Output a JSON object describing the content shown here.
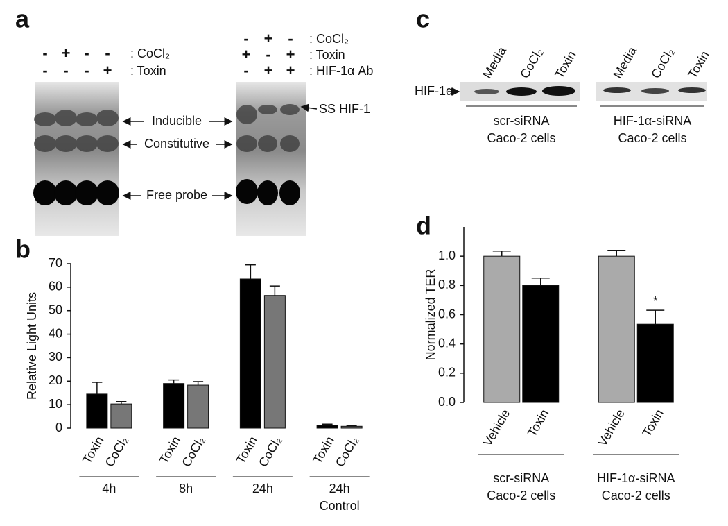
{
  "panel_a": {
    "letter": "a",
    "left_rows": [
      {
        "signs": [
          "-",
          "+",
          "-",
          "-"
        ],
        "label": ": CoCl₂"
      },
      {
        "signs": [
          "-",
          "-",
          "-",
          "+"
        ],
        "label": ": Toxin"
      }
    ],
    "right_rows": [
      {
        "signs": [
          "-",
          "+",
          "-"
        ],
        "label": ": CoCl₂"
      },
      {
        "signs": [
          "+",
          "-",
          "+"
        ],
        "label": ": Toxin"
      },
      {
        "signs": [
          "-",
          "+",
          "+"
        ],
        "label": ": HIF-1α Ab"
      }
    ],
    "bands": [
      "Inducible",
      "Constitutive",
      "Free probe"
    ],
    "right_band": "SS HIF-1"
  },
  "panel_c": {
    "letter": "c",
    "protein": "HIF-1α",
    "blots": [
      {
        "lanes": [
          "Media",
          "CoCl₂",
          "Toxin"
        ],
        "group": [
          "scr-siRNA",
          "Caco-2 cells"
        ]
      },
      {
        "lanes": [
          "Media",
          "CoCl₂",
          "Toxin"
        ],
        "group": [
          "HIF-1α-siRNA",
          "Caco-2 cells"
        ]
      }
    ]
  },
  "chart_data": [
    {
      "type": "bar",
      "panel_label": "b",
      "y_label": "Relative Light Units",
      "categories": [
        "4h",
        "8h",
        "24h",
        "24h\nControl"
      ],
      "series": [
        {
          "name": "Toxin",
          "color": "#000000",
          "values": [
            14.5,
            19,
            63.5,
            1.2
          ],
          "errors": [
            5,
            1.5,
            6,
            0.5
          ]
        },
        {
          "name": "CoCl₂",
          "color": "#777777",
          "values": [
            10.3,
            18.3,
            56.5,
            0.8
          ],
          "errors": [
            1,
            1.5,
            4,
            0.3
          ]
        }
      ],
      "ylim": [
        0,
        70
      ],
      "yticks": [
        0,
        10,
        20,
        30,
        40,
        50,
        60,
        70
      ]
    },
    {
      "type": "bar",
      "panel_label": "d",
      "y_label": "Normalized TER",
      "categories": [
        "Vehicle",
        "Toxin",
        "Vehicle",
        "Toxin"
      ],
      "groups": [
        "scr-siRNA\nCaco-2 cells",
        "HIF-1α-siRNA\nCaco-2 cells"
      ],
      "values": [
        1.0,
        0.8,
        1.0,
        0.535
      ],
      "errors": [
        0.035,
        0.05,
        0.04,
        0.095
      ],
      "colors": [
        "#aaaaaa",
        "#000000",
        "#aaaaaa",
        "#000000"
      ],
      "annotations": [
        null,
        null,
        null,
        "*"
      ],
      "ylim": [
        0,
        1.2
      ],
      "yticks": [
        {
          "value": 0,
          "label": "0.0"
        },
        0.2,
        0.4,
        0.6,
        0.8,
        {
          "value": 1,
          "label": "1.0"
        }
      ]
    }
  ]
}
